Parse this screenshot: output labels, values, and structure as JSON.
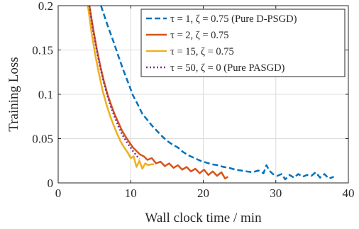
{
  "chart_data": {
    "type": "line",
    "xlabel": "Wall clock time / min",
    "ylabel": "Training Loss",
    "xlim": [
      0,
      40
    ],
    "ylim": [
      0,
      0.2
    ],
    "xticks": [
      0,
      10,
      20,
      30,
      40
    ],
    "yticks": [
      0,
      0.05,
      0.1,
      0.15,
      0.2
    ],
    "xtick_labels": [
      "0",
      "10",
      "20",
      "30",
      "40"
    ],
    "ytick_labels": [
      "0",
      "0.05",
      "0.1",
      "0.15",
      "0.2"
    ],
    "grid": true,
    "legend_position": "top-right",
    "series": [
      {
        "name": "τ = 1, ζ = 0.75 (Pure D-PSGD)",
        "color": "#0072BD",
        "dash": "8,4",
        "x": [
          5.9,
          6.8,
          7.6,
          8.3,
          9.0,
          9.7,
          10.3,
          11.0,
          11.6,
          12.3,
          13.0,
          13.7,
          14.4,
          15.1,
          15.8,
          16.5,
          17.2,
          18.0,
          18.8,
          19.6,
          20.4,
          21.2,
          22.0,
          22.8,
          23.6,
          24.4,
          25.2,
          26.0,
          26.8,
          27.6,
          28.3,
          28.7,
          29.1,
          29.6,
          30.2,
          30.8,
          31.3,
          31.9,
          32.5,
          33.1,
          33.7,
          34.3,
          34.9,
          35.5,
          36.1,
          36.7,
          37.3,
          38.0
        ],
        "y": [
          0.2,
          0.178,
          0.16,
          0.143,
          0.127,
          0.112,
          0.099,
          0.088,
          0.078,
          0.071,
          0.064,
          0.058,
          0.052,
          0.047,
          0.043,
          0.04,
          0.035,
          0.031,
          0.028,
          0.025,
          0.023,
          0.021,
          0.02,
          0.018,
          0.017,
          0.015,
          0.014,
          0.013,
          0.012,
          0.014,
          0.011,
          0.02,
          0.014,
          0.01,
          0.008,
          0.01,
          0.004,
          0.009,
          0.006,
          0.01,
          0.007,
          0.009,
          0.008,
          0.012,
          0.006,
          0.01,
          0.005,
          0.007
        ]
      },
      {
        "name": "τ = 2, ζ = 0.75",
        "color": "#D95319",
        "dash": "",
        "x": [
          4.3,
          4.8,
          5.3,
          5.8,
          6.3,
          6.8,
          7.3,
          7.8,
          8.3,
          8.8,
          9.3,
          9.8,
          10.3,
          10.8,
          11.3,
          11.8,
          12.3,
          12.9,
          13.5,
          14.1,
          14.7,
          15.3,
          15.9,
          16.5,
          17.1,
          17.7,
          18.3,
          18.9,
          19.5,
          20.1,
          20.7,
          21.3,
          21.9,
          22.5,
          23.0,
          23.4
        ],
        "y": [
          0.2,
          0.175,
          0.152,
          0.132,
          0.115,
          0.1,
          0.088,
          0.077,
          0.068,
          0.059,
          0.052,
          0.046,
          0.04,
          0.036,
          0.032,
          0.03,
          0.026,
          0.028,
          0.022,
          0.024,
          0.019,
          0.022,
          0.017,
          0.02,
          0.015,
          0.018,
          0.013,
          0.016,
          0.011,
          0.015,
          0.009,
          0.013,
          0.008,
          0.012,
          0.005,
          0.007
        ]
      },
      {
        "name": "τ = 15, ζ = 0.75",
        "color": "#EDB120",
        "dash": "",
        "x": [
          4.1,
          4.6,
          5.1,
          5.6,
          6.1,
          6.6,
          7.1,
          7.6,
          8.1,
          8.6,
          9.1,
          9.6,
          10.0,
          10.4,
          10.8,
          11.2,
          11.6,
          12.0,
          12.4,
          12.8,
          13.2
        ],
        "y": [
          0.2,
          0.17,
          0.145,
          0.124,
          0.105,
          0.09,
          0.077,
          0.066,
          0.056,
          0.047,
          0.04,
          0.034,
          0.028,
          0.03,
          0.018,
          0.025,
          0.016,
          0.022,
          0.02,
          0.021,
          0.021
        ]
      },
      {
        "name": "τ = 50, ζ = 0 (Pure PASGD)",
        "color": "#7E2F8E",
        "dash": "2,3",
        "x": [
          4.3,
          4.8,
          5.3,
          5.8,
          6.3,
          6.8,
          7.3,
          7.8,
          8.3,
          8.8,
          9.3,
          9.8,
          10.3,
          10.8,
          11.2
        ],
        "y": [
          0.2,
          0.172,
          0.15,
          0.13,
          0.113,
          0.098,
          0.085,
          0.074,
          0.064,
          0.055,
          0.048,
          0.042,
          0.036,
          0.031,
          0.027
        ]
      }
    ]
  }
}
